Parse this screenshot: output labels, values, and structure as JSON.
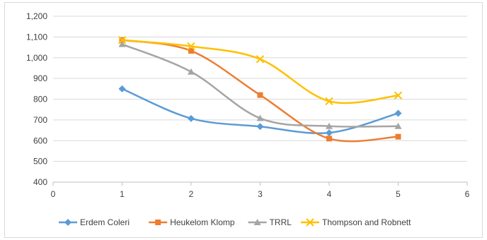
{
  "chart_data": {
    "type": "line",
    "title": "",
    "xlabel": "",
    "ylabel": "",
    "xlim": [
      0,
      6
    ],
    "ylim": [
      400,
      1200
    ],
    "x_ticks": [
      0,
      1,
      2,
      3,
      4,
      5,
      6
    ],
    "x_tick_labels": [
      "0",
      "1",
      "2",
      "3",
      "4",
      "5",
      "6"
    ],
    "y_ticks": [
      400,
      500,
      600,
      700,
      800,
      900,
      1000,
      1100,
      1200
    ],
    "y_tick_labels": [
      "400",
      "500",
      "600",
      "700",
      "800",
      "900",
      "1,000",
      "1,100",
      "1,200"
    ],
    "grid": "horizontal",
    "legend_position": "bottom",
    "smooth": true,
    "x": [
      1,
      2,
      3,
      4,
      5
    ],
    "series": [
      {
        "name": "Erdem Coleri",
        "color": "#5b9bd5",
        "marker": "diamond",
        "values": [
          850,
          707,
          668,
          638,
          732
        ]
      },
      {
        "name": "Heukelom Klomp",
        "color": "#ed7d31",
        "marker": "square",
        "values": [
          1085,
          1033,
          820,
          610,
          619
        ]
      },
      {
        "name": "TRRL",
        "color": "#a5a5a5",
        "marker": "triangle",
        "values": [
          1065,
          932,
          708,
          670,
          670
        ]
      },
      {
        "name": "Thompson and Robnett",
        "color": "#ffc000",
        "marker": "x",
        "values": [
          1085,
          1055,
          993,
          790,
          818
        ]
      }
    ]
  }
}
